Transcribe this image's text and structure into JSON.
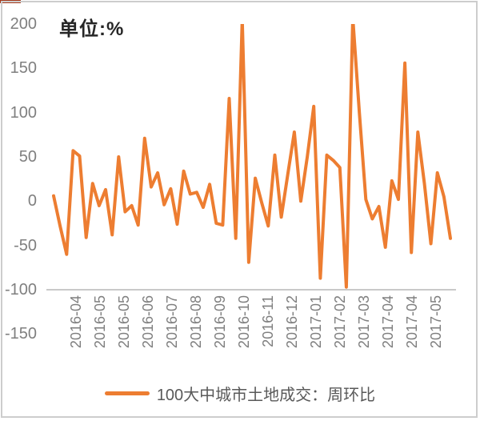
{
  "chart_data": {
    "type": "line",
    "title": "单位:%",
    "categories": [
      "2016-04",
      "2016-05",
      "2016-05",
      "2016-06",
      "2016-07",
      "2016-08",
      "2016-09",
      "2016-10",
      "2016-11",
      "2016-12",
      "2017-01",
      "2017-02",
      "2017-03",
      "2017-04",
      "2017-04",
      "2017-05"
    ],
    "series": [
      {
        "name": "100大中城市土地成交：周环比",
        "color": "#ED7D31",
        "values": [
          6,
          -28,
          -60,
          57,
          51,
          -41,
          20,
          -5,
          13,
          -38,
          50,
          -12,
          -5,
          -27,
          71,
          16,
          32,
          -4,
          14,
          -26,
          34,
          8,
          10,
          -7,
          19,
          -25,
          -27,
          116,
          -42,
          205,
          -69,
          26,
          -2,
          -28,
          52,
          -18,
          30,
          78,
          0,
          50,
          107,
          -87,
          52,
          46,
          38,
          -97,
          207,
          100,
          2,
          -20,
          -6,
          -52,
          23,
          2,
          156,
          -58,
          78,
          20,
          -48,
          32,
          5,
          -42
        ]
      }
    ],
    "y_ticks": [
      200,
      150,
      100,
      50,
      0,
      -50,
      -100,
      -150
    ],
    "ylim": [
      -150,
      200
    ],
    "category_axis_cross": -100,
    "grid": false,
    "legend_position": "bottom",
    "colors": {
      "line": "#ED7D31",
      "axis_line": "#C9C9C9",
      "tick_text": "#7F7F7F",
      "title_text": "#262626",
      "legend_text": "#595959",
      "corner_accent": "#A63C1E"
    }
  }
}
